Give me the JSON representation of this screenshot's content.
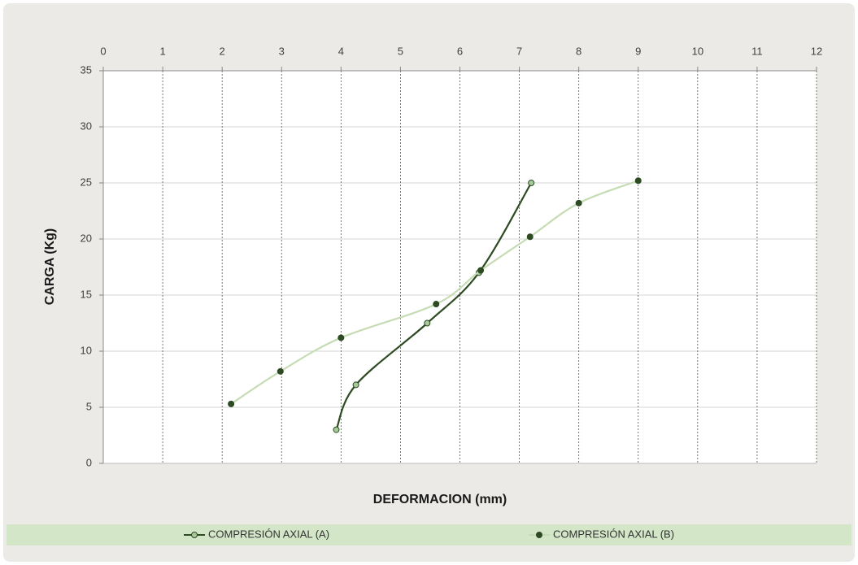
{
  "chart_data": {
    "type": "line",
    "x_label": "DEFORMACION (mm)",
    "y_label": "CARGA (Kg)",
    "xlim": [
      0,
      12
    ],
    "xticks": [
      0,
      1,
      2,
      3,
      4,
      5,
      6,
      7,
      8,
      9,
      10,
      11,
      12
    ],
    "ylim": [
      0,
      35
    ],
    "yticks": [
      0,
      5,
      10,
      15,
      20,
      25,
      30,
      35
    ],
    "grid": true,
    "smooth": true,
    "legend": "bottom",
    "series": [
      {
        "name": "COMPRESIÓN AXIAL (A)",
        "color": "#2d4a22",
        "marker_color": "#a8c99a",
        "x": [
          3.92,
          4.25,
          5.45,
          6.32,
          7.2
        ],
        "values": [
          3,
          7,
          12.5,
          17,
          25
        ]
      },
      {
        "name": "COMPRESIÓN AXIAL (B)",
        "color": "#c5dcb5",
        "marker_color": "#2d4a22",
        "x": [
          2.15,
          2.98,
          4.0,
          5.6,
          6.35,
          7.18,
          8.0,
          9.0
        ],
        "values": [
          5.3,
          8.2,
          11.2,
          14.2,
          17.2,
          20.2,
          23.2,
          25.2
        ]
      }
    ]
  }
}
